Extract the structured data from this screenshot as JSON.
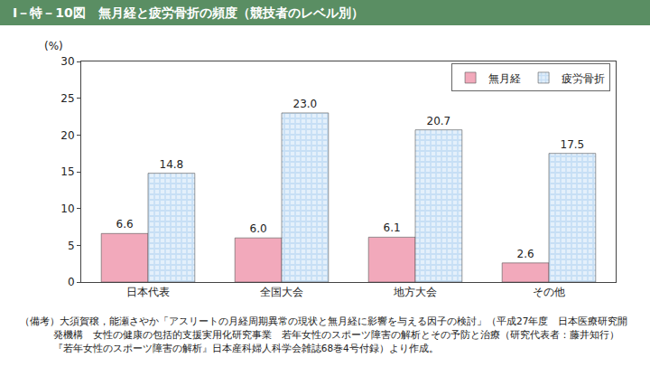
{
  "chart_data": {
    "type": "bar",
    "title": "Ⅰ－特－10図　無月経と疲労骨折の頻度（競技者のレベル別）",
    "ylabel": "(%)",
    "categories": [
      "日本代表",
      "全国大会",
      "地方大会",
      "その他"
    ],
    "series": [
      {
        "name": "無月経",
        "color": "#f2a9bb",
        "values": [
          6.6,
          6.0,
          6.1,
          2.6
        ],
        "value_labels": [
          "6.6",
          "6.0",
          "6.1",
          "2.6"
        ]
      },
      {
        "name": "疲労骨折",
        "color": "#a9cdf0",
        "marker": "checkered",
        "values": [
          14.8,
          23.0,
          20.7,
          17.5
        ],
        "value_labels": [
          "14.8",
          "23.0",
          "20.7",
          "17.5"
        ]
      }
    ],
    "ylim": [
      0,
      30
    ],
    "yticks": [
      0,
      5,
      10,
      15,
      20,
      25,
      30
    ],
    "grid": false,
    "legend": "top-right",
    "data_labels": true,
    "note": "（備考）大須賀穣，能瀬さやか「アスリートの月経周期異常の現状と無月経に影響を与える因子の検討」（平成27年度　日本医療研究開発機構　女性の健康の包括的支援実用化研究事業　若年女性のスポーツ障害の解析とその予防と治療（研究代表者：藤井知行）『若年女性のスポーツ障害の解析』日本産科婦人科学会雑誌68巻4号付録）より作成。"
  }
}
